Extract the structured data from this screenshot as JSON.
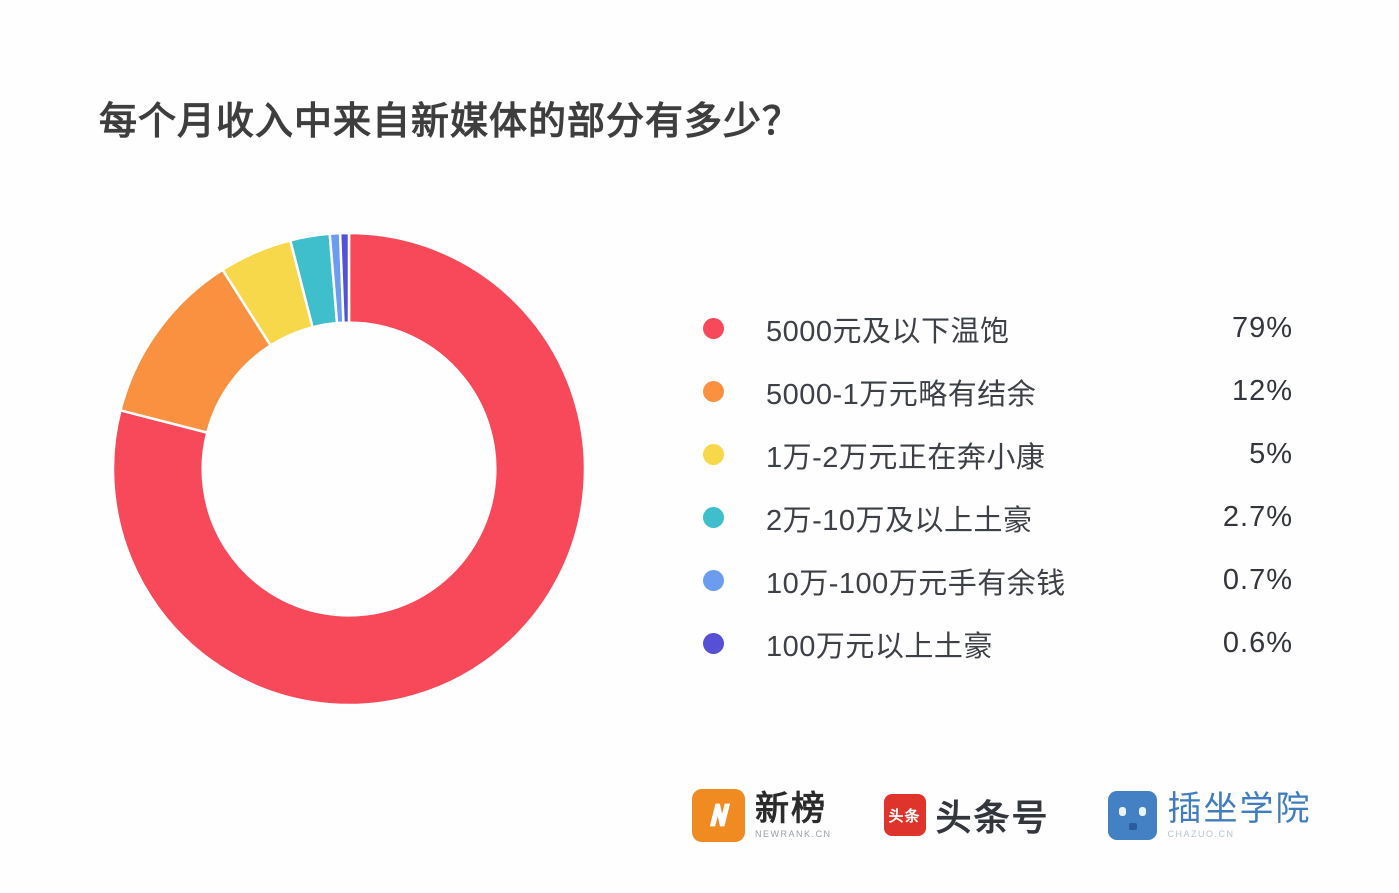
{
  "title": "每个月收入中来自新媒体的部分有多少？",
  "chart_data": {
    "type": "pie",
    "subtype": "donut",
    "title": "每个月收入中来自新媒体的部分有多少？",
    "categories": [
      "5000元及以下温饱",
      "5000-1万元略有结余",
      "1万-2万元正在奔小康",
      "2万-10万及以上土豪",
      "10万-100万元手有余钱",
      "100万元以上土豪"
    ],
    "values": [
      79,
      12,
      5,
      2.7,
      0.7,
      0.6
    ],
    "value_labels": [
      "79%",
      "12%",
      "5%",
      "2.7%",
      "0.7%",
      "0.6%"
    ],
    "colors": [
      "#F8495A",
      "#F99140",
      "#F8D84B",
      "#3FBECB",
      "#6B9CEF",
      "#5650D6"
    ],
    "start_angle_deg": -90,
    "direction": "clockwise",
    "inner_radius_ratio": 0.62,
    "slice_gap_color": "#ffffff",
    "legend_position": "right",
    "grid": false
  },
  "footer": {
    "newrank": {
      "name": "新榜",
      "subtitle": "NEWRANK.CN",
      "icon": "newrank-lightning-n-icon",
      "icon_color": "#EF8B21"
    },
    "toutiao": {
      "name": "头条号",
      "icon_text": "头条",
      "icon": "toutiao-badge-icon",
      "icon_color": "#DF342B"
    },
    "chazuo": {
      "name": "插坐学院",
      "subtitle": "CHAZUO.CN",
      "icon": "chazuo-robot-face-icon",
      "icon_color": "#4380C4"
    }
  }
}
